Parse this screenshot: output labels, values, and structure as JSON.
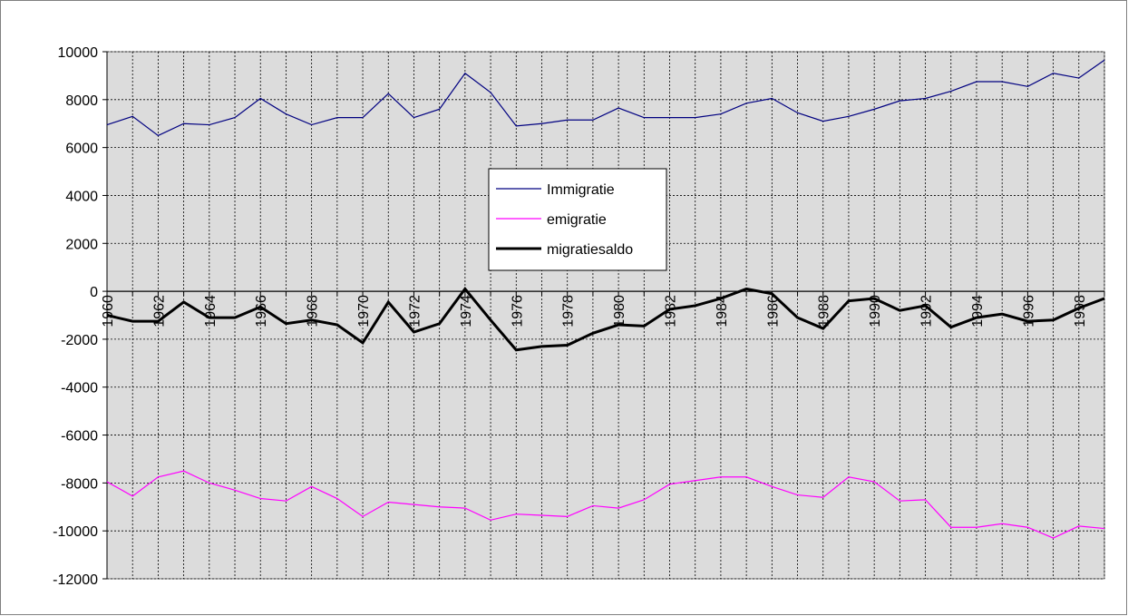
{
  "chart_data": {
    "type": "line",
    "title": "",
    "xlabel": "",
    "ylabel": "",
    "ylim": [
      -12000,
      10000
    ],
    "yticks": [
      10000,
      8000,
      6000,
      4000,
      2000,
      0,
      -2000,
      -4000,
      -6000,
      -8000,
      -10000,
      -12000
    ],
    "x": [
      1960,
      1961,
      1962,
      1963,
      1964,
      1965,
      1966,
      1967,
      1968,
      1969,
      1970,
      1971,
      1972,
      1973,
      1974,
      1975,
      1976,
      1977,
      1978,
      1979,
      1980,
      1981,
      1982,
      1983,
      1984,
      1985,
      1986,
      1987,
      1988,
      1989,
      1990,
      1991,
      1992,
      1993,
      1994,
      1995,
      1996,
      1997,
      1998,
      1999
    ],
    "xtick_labels": [
      "1960",
      "1962",
      "1964",
      "1966",
      "1968",
      "1970",
      "1972",
      "1974",
      "1976",
      "1978",
      "1980",
      "1982",
      "1984",
      "1986",
      "1988",
      "1990",
      "1992",
      "1994",
      "1996",
      "1998"
    ],
    "grid": true,
    "legend_position": "center",
    "series": [
      {
        "name": "Immigratie",
        "color": "#000080",
        "values": [
          6950,
          7300,
          6500,
          7000,
          6950,
          7250,
          8050,
          7400,
          6950,
          7250,
          7250,
          8250,
          7250,
          7600,
          9100,
          8300,
          6900,
          7000,
          7150,
          7150,
          7650,
          7250,
          7250,
          7250,
          7400,
          7850,
          8050,
          7450,
          7100,
          7300,
          7600,
          7950,
          8050,
          8350,
          8750,
          8750,
          8550,
          9100,
          8900,
          9650
        ]
      },
      {
        "name": "emigratie",
        "color": "#FF00FF",
        "values": [
          -7950,
          -8550,
          -7750,
          -7500,
          -8000,
          -8300,
          -8650,
          -8750,
          -8150,
          -8650,
          -9400,
          -8800,
          -8900,
          -9000,
          -9050,
          -9550,
          -9300,
          -9350,
          -9400,
          -8950,
          -9050,
          -8700,
          -8050,
          -7900,
          -7750,
          -7750,
          -8150,
          -8500,
          -8600,
          -7750,
          -7950,
          -8750,
          -8700,
          -9850,
          -9850,
          -9700,
          -9850,
          -10300,
          -9800,
          -9900
        ]
      },
      {
        "name": "migratiesaldo",
        "color": "#000000",
        "values": [
          -1000,
          -1250,
          -1250,
          -450,
          -1100,
          -1100,
          -650,
          -1350,
          -1200,
          -1400,
          -2150,
          -450,
          -1700,
          -1350,
          100,
          -1200,
          -2450,
          -2300,
          -2250,
          -1750,
          -1400,
          -1450,
          -750,
          -600,
          -300,
          100,
          -100,
          -1100,
          -1550,
          -400,
          -300,
          -800,
          -600,
          -1500,
          -1100,
          -950,
          -1250,
          -1200,
          -700,
          -300
        ]
      }
    ]
  }
}
